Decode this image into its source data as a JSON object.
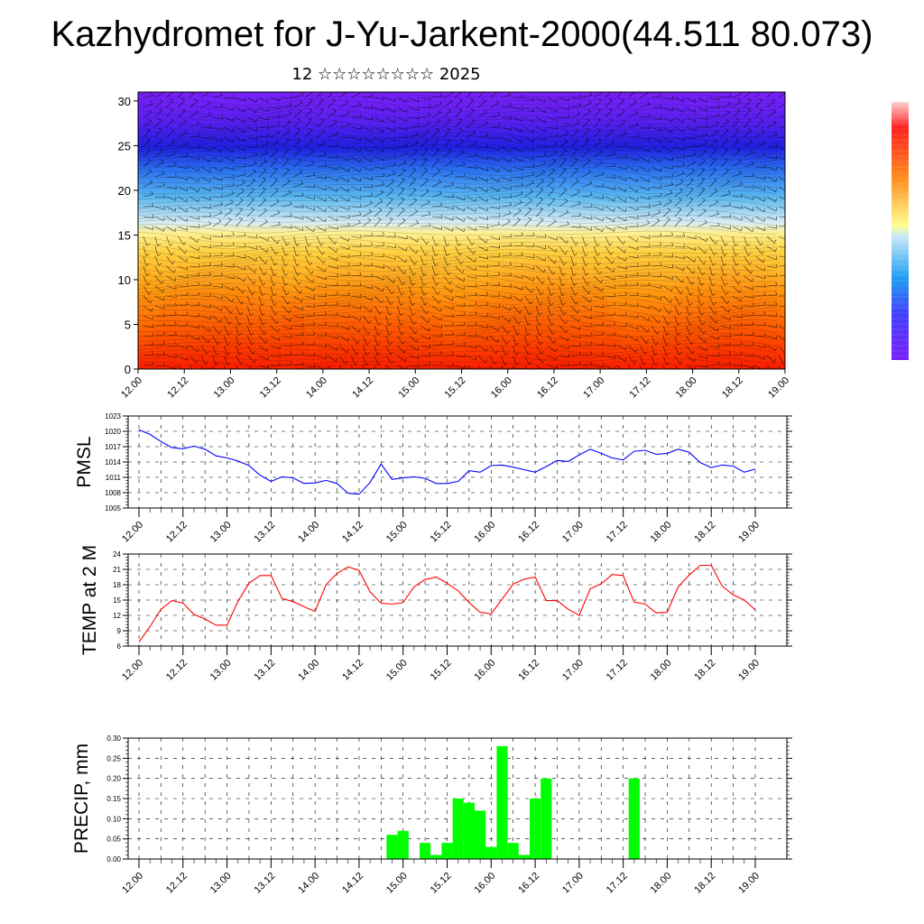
{
  "header": {
    "title": "Kazhydromet for J-Yu-Jarkent-2000(44.511 80.073)",
    "subtitle": "12 ☆☆☆☆☆☆☆☆ 2025"
  },
  "colors": {
    "pmsl_line": "#0000ff",
    "temp_line": "#ff0000",
    "precip_bar": "#00ff00",
    "colorbar": [
      "#ff0000",
      "#ff4000",
      "#ff8000",
      "#ffbf00",
      "#ffff80",
      "#80d0ff",
      "#3090ff",
      "#4040ff",
      "#6a00ff"
    ]
  },
  "time_ticks": [
    "12.00",
    "12.12",
    "13.00",
    "13.12",
    "14.00",
    "14.12",
    "15.00",
    "15.12",
    "16.00",
    "16.12",
    "17.00",
    "17.12",
    "18.00",
    "18.12",
    "19.00"
  ],
  "chart_data": [
    {
      "type": "heatmap",
      "title": "",
      "xlabel": "",
      "ylabel": "",
      "y_ticks": [
        "0",
        "5",
        "10",
        "15",
        "20",
        "25",
        "30"
      ],
      "ylim": [
        0,
        31
      ],
      "note_values": "vertical cross-section shaded field with wind barbs; colorbar has no printed labels"
    },
    {
      "type": "line",
      "ylabel": "PMSL",
      "y_ticks": [
        "1005",
        "1008",
        "1011",
        "1014",
        "1017",
        "1020",
        "1023"
      ],
      "ylim": [
        1005,
        1023
      ],
      "x_step_hours": 3,
      "series": [
        {
          "values": [
            1020.3,
            1019.4,
            1018.0,
            1016.8,
            1016.6,
            1017.1,
            1016.5,
            1015.2,
            1014.8,
            1014.2,
            1013.3,
            1011.4,
            1010.2,
            1011.1,
            1010.9,
            1009.8,
            1009.9,
            1010.4,
            1009.8,
            1007.9,
            1007.7,
            1010.0,
            1013.6,
            1010.6,
            1010.9,
            1011.1,
            1010.8,
            1009.8,
            1009.8,
            1010.2,
            1012.3,
            1012.0,
            1013.3,
            1013.4,
            1013.0,
            1012.5,
            1012.0,
            1013.1,
            1014.3,
            1014.1,
            1015.4,
            1016.5,
            1015.7,
            1014.8,
            1014.4,
            1016.1,
            1016.3,
            1015.5,
            1015.7,
            1016.5,
            1015.9,
            1013.9,
            1012.9,
            1013.4,
            1013.2,
            1012.0,
            1012.6
          ]
        }
      ]
    },
    {
      "type": "line",
      "ylabel": "TEMP at 2 M",
      "y_ticks": [
        "6",
        "9",
        "12",
        "15",
        "18",
        "21",
        "24"
      ],
      "ylim": [
        6,
        24
      ],
      "x_step_hours": 3,
      "series": [
        {
          "values": [
            6.8,
            9.8,
            13.2,
            14.9,
            14.4,
            12.2,
            11.3,
            10.1,
            10.1,
            14.8,
            18.3,
            19.8,
            19.8,
            15.3,
            14.7,
            13.7,
            12.8,
            18.0,
            20.2,
            21.5,
            20.8,
            16.6,
            14.4,
            14.2,
            14.5,
            17.6,
            19.0,
            19.5,
            18.3,
            16.8,
            14.5,
            12.6,
            12.3,
            15.2,
            18.1,
            19.1,
            19.5,
            14.9,
            14.9,
            13.2,
            12.0,
            17.2,
            18.2,
            20.0,
            19.8,
            14.6,
            14.2,
            12.5,
            12.6,
            17.6,
            19.9,
            21.8,
            21.8,
            17.7,
            16.0,
            15.0,
            13.1
          ]
        }
      ]
    },
    {
      "type": "bar",
      "ylabel": "PRECIP, mm",
      "y_ticks": [
        "0.00",
        "0.05",
        "0.10",
        "0.15",
        "0.20",
        "0.25",
        "0.30"
      ],
      "ylim": [
        0,
        0.3
      ],
      "x_step_hours": 3,
      "values": [
        0,
        0,
        0,
        0,
        0,
        0,
        0,
        0,
        0,
        0,
        0,
        0,
        0,
        0,
        0,
        0,
        0,
        0,
        0,
        0,
        0,
        0,
        0,
        0.06,
        0.07,
        0,
        0.04,
        0.01,
        0.04,
        0.15,
        0.14,
        0.12,
        0.03,
        0.28,
        0.04,
        0.01,
        0.15,
        0.2,
        0,
        0,
        0,
        0,
        0,
        0,
        0,
        0.2,
        0,
        0,
        0,
        0,
        0,
        0,
        0,
        0,
        0,
        0,
        0
      ]
    }
  ]
}
